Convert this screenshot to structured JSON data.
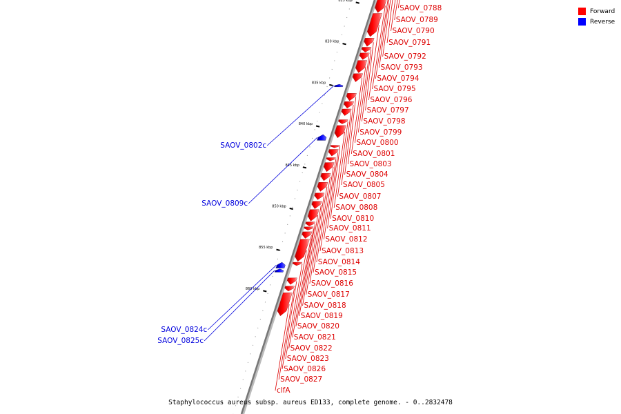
{
  "chart_data": {
    "type": "linear-genome-map",
    "caption": "Staphylococcus aureus subsp. aureus ED133, complete genome. - 0..2832478",
    "legend": [
      {
        "name": "Forward",
        "color": "#ff0000"
      },
      {
        "name": "Reverse",
        "color": "#0000ff"
      }
    ],
    "ticks": [
      {
        "label": "820 kbp",
        "kbp": 820
      },
      {
        "label": "825 kbp",
        "kbp": 825
      },
      {
        "label": "830 kbp",
        "kbp": 830
      },
      {
        "label": "835 kbp",
        "kbp": 835
      },
      {
        "label": "840 kbp",
        "kbp": 840
      },
      {
        "label": "845 kbp",
        "kbp": 845
      },
      {
        "label": "850 kbp",
        "kbp": 850
      },
      {
        "label": "855 kbp",
        "kbp": 855
      },
      {
        "label": "860 kbp",
        "kbp": 860
      }
    ],
    "genes": [
      {
        "name": "SAOV_0788",
        "strand": "forward",
        "start_kbp": 815.3,
        "end_kbp": 816.3
      },
      {
        "name": "SAOV_0789",
        "strand": "forward",
        "start_kbp": 816.6,
        "end_kbp": 817.6
      },
      {
        "name": "SAOV_0790",
        "strand": "forward",
        "start_kbp": 817.9,
        "end_kbp": 820.6
      },
      {
        "name": "SAOV_0791",
        "strand": "forward",
        "start_kbp": 820.7,
        "end_kbp": 821.8
      },
      {
        "name": "SAOV_0792",
        "strand": "forward",
        "start_kbp": 822.0,
        "end_kbp": 822.9
      },
      {
        "name": "SAOV_0793",
        "strand": "forward",
        "start_kbp": 823.1,
        "end_kbp": 823.7
      },
      {
        "name": "SAOV_0794",
        "strand": "forward",
        "start_kbp": 823.9,
        "end_kbp": 824.3
      },
      {
        "name": "SAOV_0795",
        "strand": "forward",
        "start_kbp": 824.5,
        "end_kbp": 826.2
      },
      {
        "name": "SAOV_0796",
        "strand": "forward",
        "start_kbp": 826.3,
        "end_kbp": 829.1
      },
      {
        "name": "SAOV_0797",
        "strand": "forward",
        "start_kbp": 829.3,
        "end_kbp": 830.3
      },
      {
        "name": "SAOV_0798",
        "strand": "forward",
        "start_kbp": 830.4,
        "end_kbp": 831.0
      },
      {
        "name": "SAOV_0799",
        "strand": "forward",
        "start_kbp": 831.1,
        "end_kbp": 831.9
      },
      {
        "name": "SAOV_0800",
        "strand": "forward",
        "start_kbp": 832.0,
        "end_kbp": 833.5
      },
      {
        "name": "SAOV_0801",
        "strand": "forward",
        "start_kbp": 833.6,
        "end_kbp": 834.6
      },
      {
        "name": "SAOV_0802c",
        "strand": "reverse",
        "start_kbp": 834.9,
        "end_kbp": 835.2
      },
      {
        "name": "SAOV_0803",
        "strand": "forward",
        "start_kbp": 836.0,
        "end_kbp": 836.9
      },
      {
        "name": "SAOV_0804",
        "strand": "forward",
        "start_kbp": 837.0,
        "end_kbp": 837.8
      },
      {
        "name": "SAOV_0805",
        "strand": "forward",
        "start_kbp": 837.9,
        "end_kbp": 838.7
      },
      {
        "name": "SAOV_0807",
        "strand": "forward",
        "start_kbp": 839.2,
        "end_kbp": 839.7
      },
      {
        "name": "SAOV_0808",
        "strand": "forward",
        "start_kbp": 839.9,
        "end_kbp": 841.4
      },
      {
        "name": "SAOV_0809c",
        "strand": "reverse",
        "start_kbp": 841.0,
        "end_kbp": 841.7
      },
      {
        "name": "SAOV_0810",
        "strand": "forward",
        "start_kbp": 842.3,
        "end_kbp": 842.6
      },
      {
        "name": "SAOV_0811",
        "strand": "forward",
        "start_kbp": 842.8,
        "end_kbp": 843.6
      },
      {
        "name": "SAOV_0812",
        "strand": "forward",
        "start_kbp": 843.8,
        "end_kbp": 844.2
      },
      {
        "name": "SAOV_0813",
        "strand": "forward",
        "start_kbp": 844.4,
        "end_kbp": 845.5
      },
      {
        "name": "SAOV_0814",
        "strand": "forward",
        "start_kbp": 845.7,
        "end_kbp": 846.6
      },
      {
        "name": "SAOV_0815",
        "strand": "forward",
        "start_kbp": 846.8,
        "end_kbp": 847.9
      },
      {
        "name": "SAOV_0816",
        "strand": "forward",
        "start_kbp": 848.1,
        "end_kbp": 848.9
      },
      {
        "name": "SAOV_0817",
        "strand": "forward",
        "start_kbp": 849.1,
        "end_kbp": 850.0
      },
      {
        "name": "SAOV_0818",
        "strand": "forward",
        "start_kbp": 850.1,
        "end_kbp": 851.5
      },
      {
        "name": "SAOV_0819",
        "strand": "forward",
        "start_kbp": 851.6,
        "end_kbp": 852.1
      },
      {
        "name": "SAOV_0820",
        "strand": "forward",
        "start_kbp": 852.2,
        "end_kbp": 852.6
      },
      {
        "name": "SAOV_0821",
        "strand": "forward",
        "start_kbp": 852.8,
        "end_kbp": 853.6
      },
      {
        "name": "SAOV_0822",
        "strand": "forward",
        "start_kbp": 853.7,
        "end_kbp": 856.4
      },
      {
        "name": "SAOV_0823",
        "strand": "forward",
        "start_kbp": 856.5,
        "end_kbp": 856.9
      },
      {
        "name": "SAOV_0824c",
        "strand": "reverse",
        "start_kbp": 856.5,
        "end_kbp": 857.2
      },
      {
        "name": "SAOV_0825c",
        "strand": "reverse",
        "start_kbp": 857.3,
        "end_kbp": 857.7
      },
      {
        "name": "SAOV_0826",
        "strand": "forward",
        "start_kbp": 858.4,
        "end_kbp": 859.2
      },
      {
        "name": "SAOV_0827",
        "strand": "forward",
        "start_kbp": 859.4,
        "end_kbp": 860.0
      },
      {
        "name": "clfA",
        "strand": "forward",
        "start_kbp": 860.2,
        "end_kbp": 863.0
      }
    ]
  }
}
